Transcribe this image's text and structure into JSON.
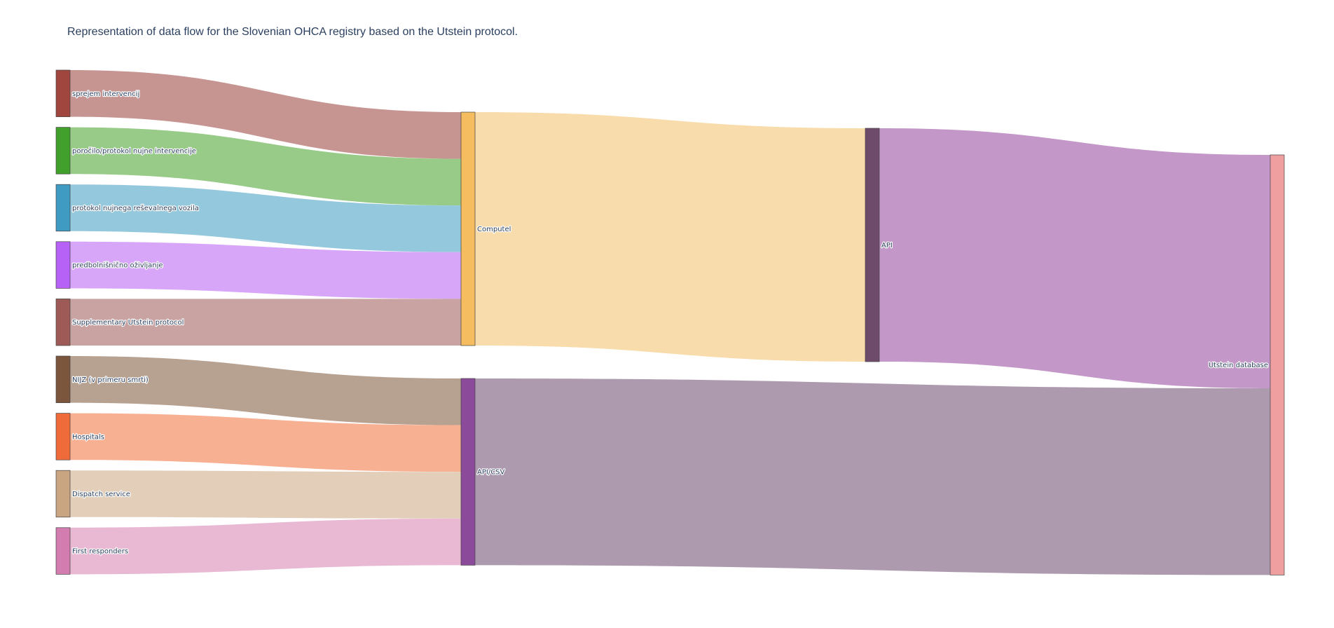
{
  "chart_data": {
    "type": "sankey",
    "title": "Representation of data flow for the Slovenian OHCA registry based on the Utstein protocol.",
    "nodes": [
      {
        "id": "sprejem",
        "label": "sprejem intervencij",
        "color": "#a0463f",
        "column": 0
      },
      {
        "id": "porocilo",
        "label": "poročilo/protokol nujne intervencije",
        "color": "#41a02b",
        "column": 0
      },
      {
        "id": "protokol",
        "label": "protokol nujnega reševalnega vozila",
        "color": "#3f9bc1",
        "column": 0
      },
      {
        "id": "predbol",
        "label": "predbolnišnično oživljanje",
        "color": "#b762f6",
        "column": 0
      },
      {
        "id": "supp",
        "label": "Supplementary Utstein protocol",
        "color": "#9d5a56",
        "column": 0
      },
      {
        "id": "nijz",
        "label": "NIJZ (v primeru smrti)",
        "color": "#7c563c",
        "column": 0
      },
      {
        "id": "hosp",
        "label": "Hospitals",
        "color": "#f06b3a",
        "column": 0
      },
      {
        "id": "dispatch",
        "label": "Dispatch service",
        "color": "#c9a582",
        "column": 0
      },
      {
        "id": "first",
        "label": "First responders",
        "color": "#d37cb0",
        "column": 0
      },
      {
        "id": "computel",
        "label": "Computel",
        "color": "#f5bd5f",
        "column": 1
      },
      {
        "id": "apicsv",
        "label": "API/CSV",
        "color": "#8c4a9b",
        "column": 1
      },
      {
        "id": "api",
        "label": "API",
        "color": "#6f4b6b",
        "column": 2
      },
      {
        "id": "utstein",
        "label": "Utstein database",
        "color": "#ef9f9f",
        "column": 3
      }
    ],
    "links": [
      {
        "source": "sprejem",
        "target": "computel",
        "value": 1,
        "color": "#c79591"
      },
      {
        "source": "porocilo",
        "target": "computel",
        "value": 1,
        "color": "#98cb87"
      },
      {
        "source": "protokol",
        "target": "computel",
        "value": 1,
        "color": "#94c8dc"
      },
      {
        "source": "predbol",
        "target": "computel",
        "value": 1,
        "color": "#d7a6f9"
      },
      {
        "source": "supp",
        "target": "computel",
        "value": 1,
        "color": "#c9a3a1"
      },
      {
        "source": "nijz",
        "target": "apicsv",
        "value": 1,
        "color": "#b7a191"
      },
      {
        "source": "hosp",
        "target": "apicsv",
        "value": 1,
        "color": "#f8b092"
      },
      {
        "source": "dispatch",
        "target": "apicsv",
        "value": 1,
        "color": "#e3cfb9"
      },
      {
        "source": "first",
        "target": "apicsv",
        "value": 1,
        "color": "#e9b8d3"
      },
      {
        "source": "computel",
        "target": "api",
        "value": 5,
        "color": "#f8dcab"
      },
      {
        "source": "api",
        "target": "utstein",
        "value": 5,
        "color": "#c398c8"
      },
      {
        "source": "apicsv",
        "target": "utstein",
        "value": 4,
        "color": "#ae9aae"
      }
    ]
  }
}
